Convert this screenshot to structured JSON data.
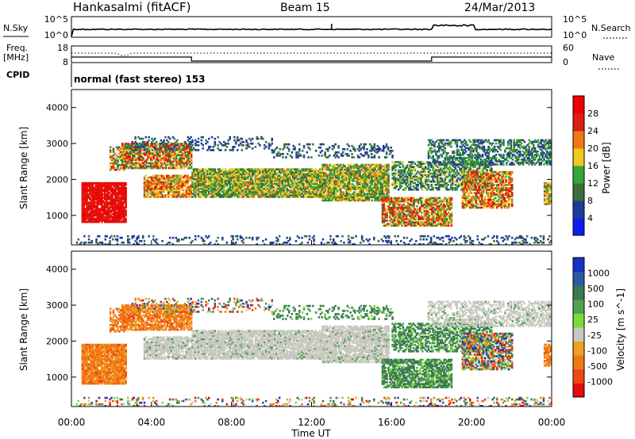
{
  "header": {
    "station": "Hankasalmi (fitACF)",
    "beam": "Beam 15",
    "date": "24/Mar/2013"
  },
  "noise_panel": {
    "left_label": "N.Sky",
    "right_label": "N.Search",
    "left_ticks": [
      "10^5",
      "10^0"
    ],
    "right_ticks": [
      "10^5",
      "10^0"
    ]
  },
  "freq_panel": {
    "left_label_line1": "Freq.",
    "left_label_line2": "[MHz]",
    "left_ticks": [
      "18",
      "8"
    ],
    "right_label": "Nave",
    "right_ticks": [
      "60",
      "0"
    ]
  },
  "cpid": {
    "label": "CPID",
    "text": "normal (fast stereo) 153"
  },
  "chart_data": [
    {
      "type": "heatmap",
      "name": "power",
      "ylabel": "Slant Range [km]",
      "y_ticks": [
        "4000",
        "3000",
        "2000",
        "1000"
      ],
      "ylim": [
        180,
        4500
      ],
      "xlim": [
        0,
        24
      ],
      "colorbar": {
        "title": "Power [dB]",
        "ticks": [
          "28",
          "24",
          "20",
          "16",
          "12",
          "8",
          "4"
        ],
        "range": [
          0,
          32
        ],
        "colors": [
          "#0a1ef0",
          "#1e3c9b",
          "#3c6e3c",
          "#37a537",
          "#f0c81e",
          "#f07814",
          "#dc1e14",
          "#f00000"
        ]
      }
    },
    {
      "type": "heatmap",
      "name": "velocity",
      "ylabel": "Slant Range [km]",
      "y_ticks": [
        "4000",
        "3000",
        "2000",
        "1000"
      ],
      "ylim": [
        180,
        4500
      ],
      "xlim": [
        0,
        24
      ],
      "colorbar": {
        "title": "Velocity [m s^-1]",
        "ticks": [
          "1000",
          "500",
          "100",
          "25",
          "-25",
          "-100",
          "-500",
          "-1000"
        ],
        "colors": [
          "#1432c8",
          "#2d5aa0",
          "#3c7850",
          "#50a050",
          "#78dc3c",
          "#c8c8c0",
          "#f0a01e",
          "#f07814",
          "#f04614",
          "#e60a0a"
        ]
      }
    }
  ],
  "x_axis": {
    "ticks": [
      "00:00",
      "04:00",
      "08:00",
      "12:00",
      "16:00",
      "20:00",
      "00:00"
    ],
    "label": "Time UT"
  },
  "colors": {
    "grey_scatter": "#c8c8c0",
    "axis": "#000000"
  }
}
